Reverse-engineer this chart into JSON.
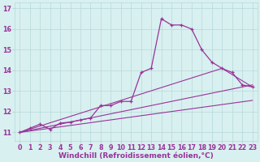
{
  "line1": {
    "x": [
      0,
      1,
      2,
      3,
      4,
      5,
      6,
      7,
      8,
      9,
      10,
      11,
      12,
      13,
      14,
      15,
      16,
      17,
      18,
      19,
      20,
      21,
      22,
      23
    ],
    "y": [
      11.0,
      11.2,
      11.4,
      11.15,
      11.45,
      11.5,
      11.6,
      11.7,
      12.3,
      12.3,
      12.5,
      12.5,
      13.9,
      14.1,
      16.5,
      16.2,
      16.2,
      16.0,
      15.0,
      14.4,
      14.1,
      13.9,
      13.3,
      13.2
    ]
  },
  "line2": {
    "x": [
      0,
      20,
      23
    ],
    "y": [
      11.0,
      14.1,
      13.2
    ]
  },
  "line3": {
    "x": [
      0,
      23
    ],
    "y": [
      11.0,
      13.3
    ]
  },
  "line4": {
    "x": [
      0,
      23
    ],
    "y": [
      11.0,
      12.55
    ]
  },
  "line_color": "#993399",
  "bg_color": "#d8f0f0",
  "grid_color": "#b8d8d8",
  "xlabel": "Windchill (Refroidissement éolien,°C)",
  "xlabel_fontsize": 6.5,
  "tick_fontsize": 5.8,
  "ylim": [
    10.6,
    17.3
  ],
  "xlim": [
    -0.5,
    23.5
  ],
  "yticks": [
    11,
    12,
    13,
    14,
    15,
    16,
    17
  ],
  "xticks": [
    0,
    1,
    2,
    3,
    4,
    5,
    6,
    7,
    8,
    9,
    10,
    11,
    12,
    13,
    14,
    15,
    16,
    17,
    18,
    19,
    20,
    21,
    22,
    23
  ]
}
